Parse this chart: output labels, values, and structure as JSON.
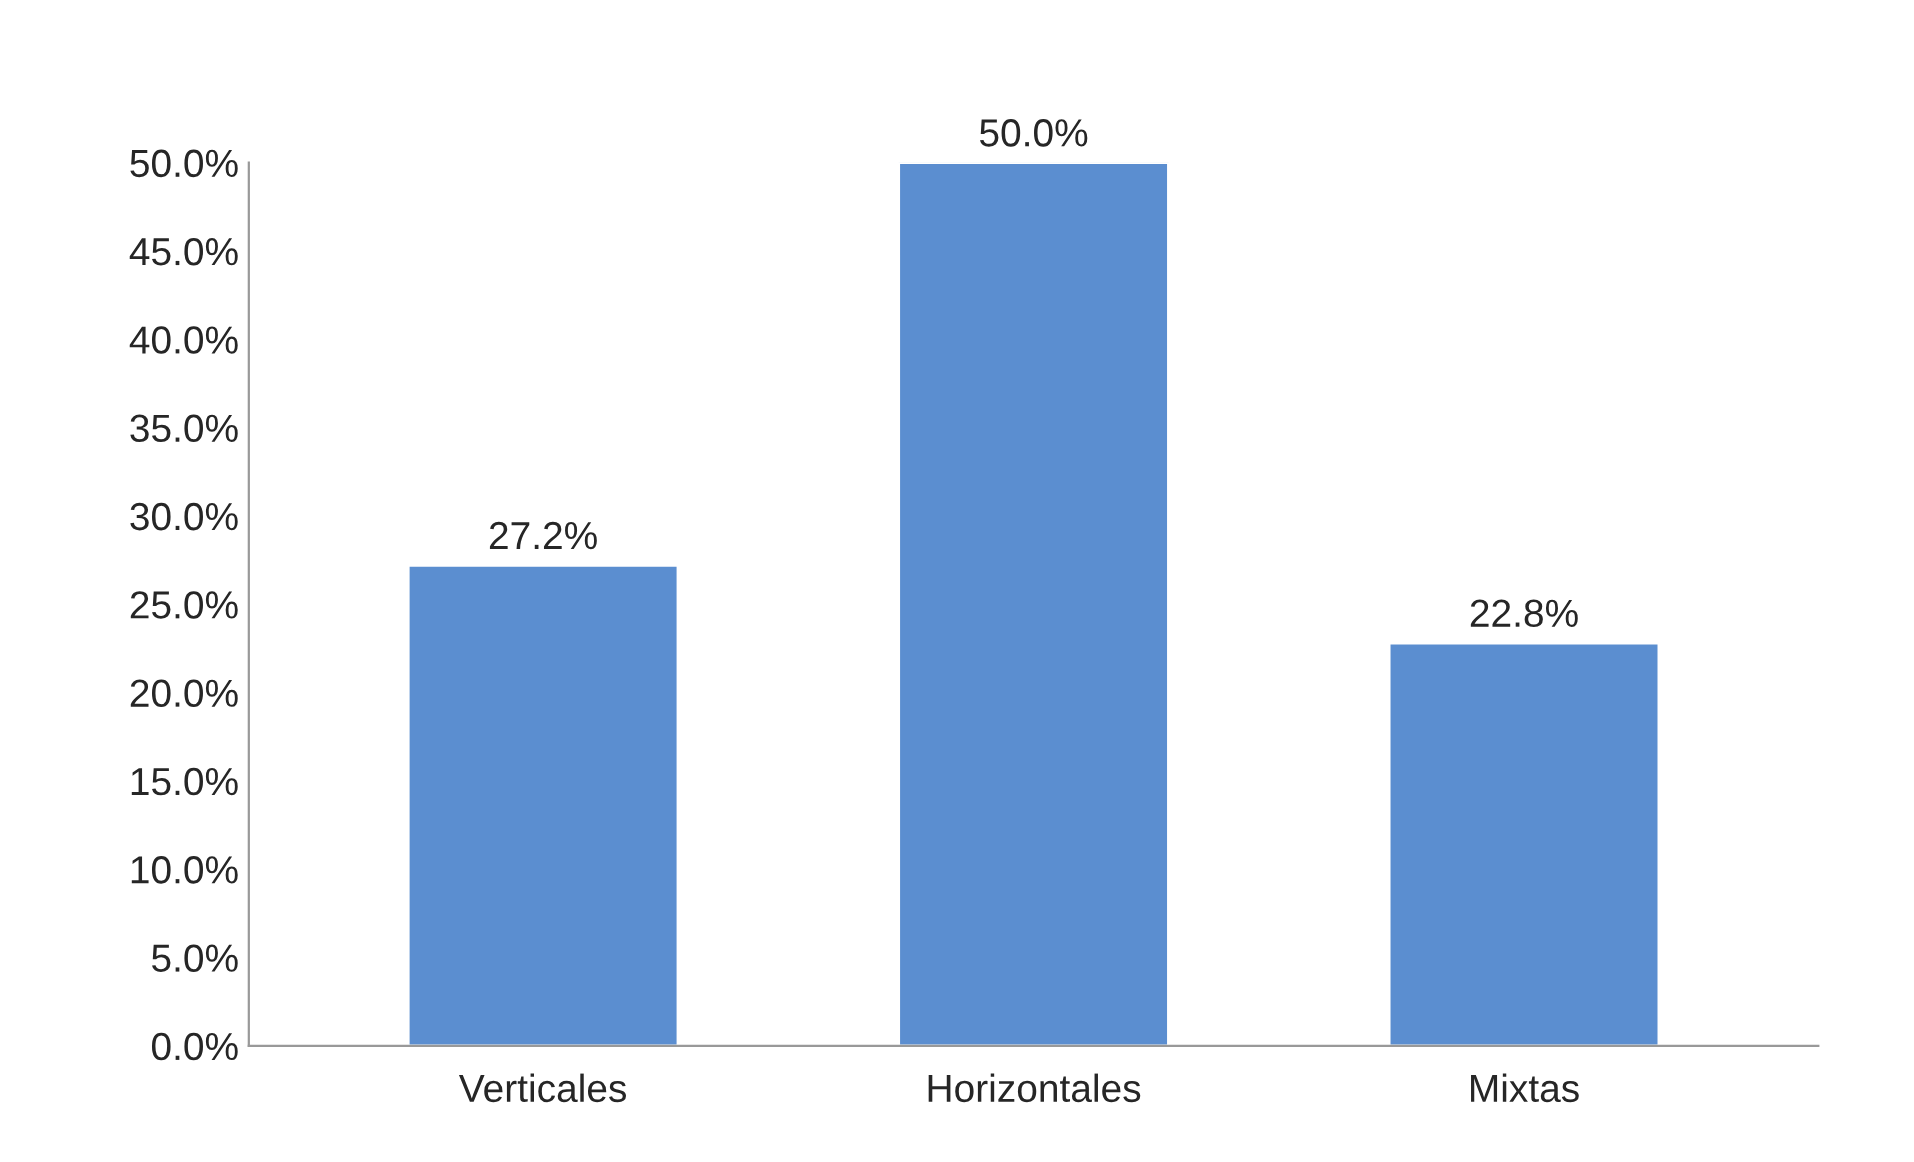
{
  "chart_data": {
    "type": "bar",
    "categories": [
      "Verticales",
      "Horizontales",
      "Mixtas"
    ],
    "values": [
      27.2,
      50.0,
      22.8
    ],
    "value_labels": [
      "27.2%",
      "50.0%",
      "22.8%"
    ],
    "color": "#5b8ed0",
    "ylim": [
      0,
      50
    ],
    "yticks": [
      {
        "value": 0,
        "label": "0.0%"
      },
      {
        "value": 5,
        "label": "5.0%"
      },
      {
        "value": 10,
        "label": "10.0%"
      },
      {
        "value": 15,
        "label": "15.0%"
      },
      {
        "value": 20,
        "label": "20.0%"
      },
      {
        "value": 25,
        "label": "25.0%"
      },
      {
        "value": 30,
        "label": "30.0%"
      },
      {
        "value": 35,
        "label": "35.0%"
      },
      {
        "value": 40,
        "label": "40.0%"
      },
      {
        "value": 45,
        "label": "45.0%"
      },
      {
        "value": 50,
        "label": "50.0%"
      }
    ],
    "grid": false,
    "legend": false
  }
}
